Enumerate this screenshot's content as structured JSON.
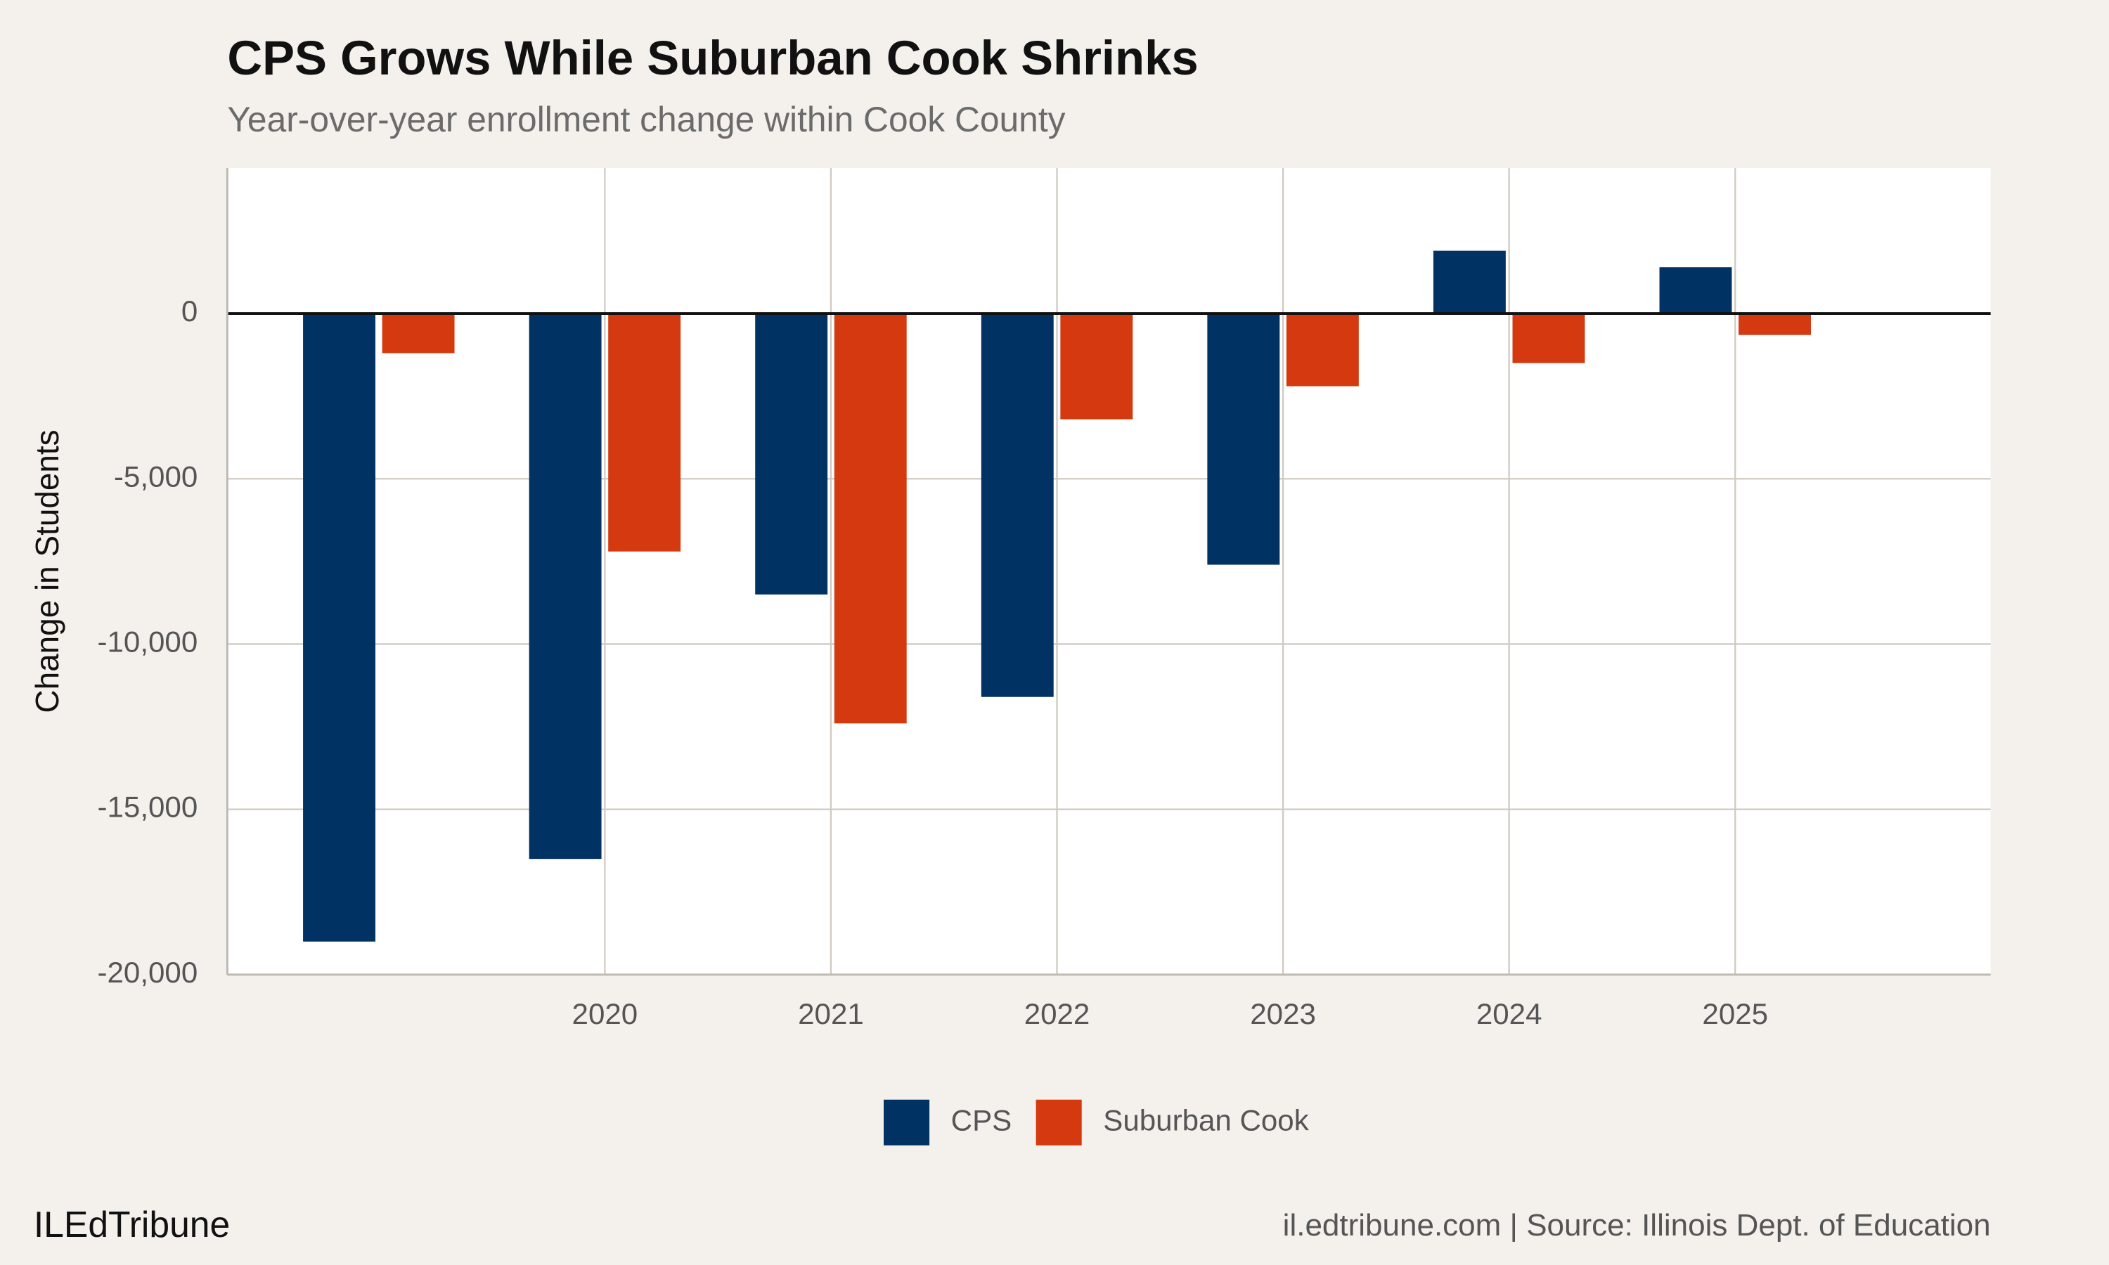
{
  "chart_data": {
    "type": "bar",
    "title": "CPS Grows While Suburban Cook Shrinks",
    "subtitle": "Year-over-year enrollment change within Cook County",
    "y_label": "Change in Students",
    "x": [
      2019,
      2020,
      2021,
      2022,
      2023,
      2024,
      2025
    ],
    "xlim": [
      2018.33,
      2026.13
    ],
    "xticks": [
      2020,
      2021,
      2022,
      2023,
      2024,
      2025
    ],
    "ylim": [
      -20000,
      4400
    ],
    "yticks": [
      {
        "value": -20000,
        "label": "-20,000"
      },
      {
        "value": -15000,
        "label": "-15,000"
      },
      {
        "value": -10000,
        "label": "-10,000"
      },
      {
        "value": -5000,
        "label": "-5,000"
      },
      0
    ],
    "grid": true,
    "legend": "bottom",
    "series": [
      {
        "name": "CPS",
        "color": "#003263",
        "values": [
          -19000,
          -16500,
          -8500,
          -11600,
          -7600,
          1900,
          1400
        ]
      },
      {
        "name": "Suburban Cook",
        "color": "#d4390f",
        "values": [
          -1200,
          -7200,
          -12400,
          -3200,
          -2200,
          -1500,
          -650
        ]
      }
    ],
    "footer_left": "ILEdTribune",
    "footer_right": "il.edtribune.com | Source: Illinois Dept. of Education"
  }
}
